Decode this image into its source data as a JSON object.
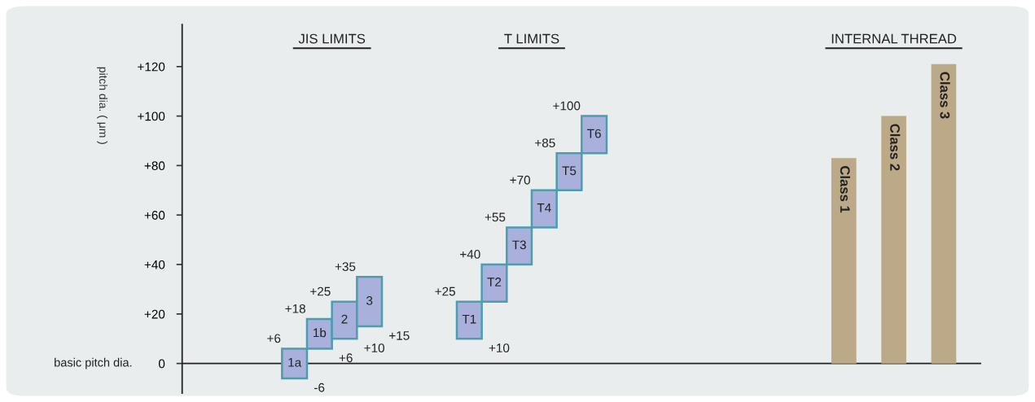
{
  "chart_data": {
    "type": "bar",
    "ylabel": "pitch dia. ( μm )",
    "categories": [
      null,
      null,
      null,
      null,
      "1a",
      "1b",
      "2",
      "3",
      null,
      null,
      null,
      "T1",
      "T2",
      "T3",
      "T4",
      "T5",
      "T6",
      null,
      null,
      null,
      null,
      null,
      null,
      null,
      null,
      null,
      "Class 1",
      null,
      "Class 2",
      null,
      "Class 3",
      null
    ],
    "values": [
      null,
      null,
      null,
      null,
      12,
      12,
      15,
      20,
      null,
      null,
      null,
      15,
      15,
      15,
      15,
      15,
      15,
      null,
      null,
      null,
      null,
      null,
      null,
      null,
      null,
      null,
      83,
      null,
      100,
      null,
      121,
      null
    ],
    "base": [
      null,
      null,
      null,
      null,
      -6,
      6,
      10,
      15,
      null,
      null,
      null,
      10,
      25,
      40,
      55,
      70,
      85,
      null,
      null,
      null,
      null,
      null,
      null,
      null,
      null,
      null,
      0,
      null,
      0,
      null,
      0,
      null
    ],
    "colors": [
      null,
      null,
      null,
      null,
      "#a9b0db",
      "#a9b0db",
      "#a9b0db",
      "#a9b0db",
      null,
      null,
      null,
      "#a9b0db",
      "#a9b0db",
      "#a9b0db",
      "#a9b0db",
      "#a9b0db",
      "#a9b0db",
      null,
      null,
      null,
      null,
      null,
      null,
      null,
      null,
      null,
      "#bca987",
      null,
      "#bca987",
      null,
      "#bca987",
      null
    ],
    "ylim": [
      -12,
      137
    ],
    "yticks": [
      0,
      {
        "value": 20,
        "label": "+20"
      },
      {
        "value": 40,
        "label": "+40"
      },
      {
        "value": 60,
        "label": "+60"
      },
      {
        "value": 80,
        "label": "+80"
      },
      {
        "value": 100,
        "label": "+100"
      },
      {
        "value": 120,
        "label": "+120"
      }
    ],
    "tick_labels": "y",
    "ref_lines": [
      {
        "axis": "y",
        "value": 0,
        "label": "basic pitch dia.",
        "color": "#222222"
      }
    ],
    "grid": false,
    "annotations": [
      "JIS LIMITS",
      "T LIMITS",
      "INTERNAL THREAD",
      {
        "text": "+6",
        "x": "1a",
        "y": 6
      },
      {
        "text": "-6",
        "x": "1a",
        "y": -6
      },
      {
        "text": "+18",
        "x": "1b",
        "y": 18
      },
      {
        "text": "+6",
        "x": "1b",
        "y": 6
      },
      {
        "text": "+25",
        "x": "2",
        "y": 25
      },
      {
        "text": "+10",
        "x": "2",
        "y": 10
      },
      {
        "text": "+35",
        "x": "3",
        "y": 35
      },
      {
        "text": "+15",
        "x": "3",
        "y": 15
      },
      {
        "text": "+10",
        "x": "T1",
        "y": 10
      },
      {
        "text": "+25",
        "x": "T1",
        "y": 25
      },
      {
        "text": "+40",
        "x": "T2",
        "y": 40
      },
      {
        "text": "+55",
        "x": "T3",
        "y": 55
      },
      {
        "text": "+70",
        "x": "T4",
        "y": 70
      },
      {
        "text": "+85",
        "x": "T5",
        "y": 85
      },
      {
        "text": "+100",
        "x": "T6",
        "y": 100
      }
    ]
  }
}
